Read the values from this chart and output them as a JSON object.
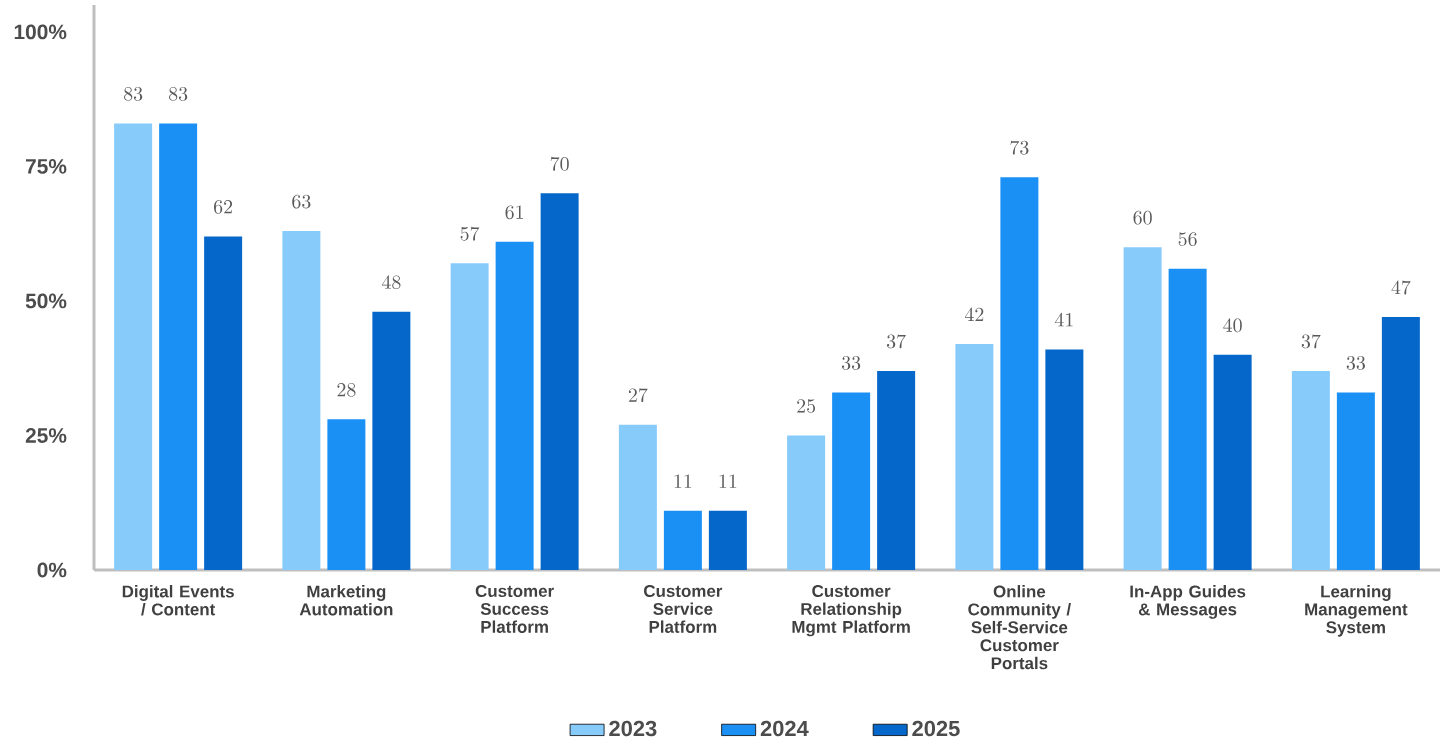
{
  "chart_data": {
    "type": "bar",
    "categories": [
      "Digital Events / Content",
      "Marketing Automation",
      "Customer Success Platform",
      "Customer Service Platform",
      "Customer Relationship Mgmt Platform",
      "Online Community / Self-Service Customer Portals",
      "In-App Guides & Messages",
      "Learning Management System"
    ],
    "series": [
      {
        "name": "2023",
        "color": "#87cbfb",
        "values": [
          83,
          63,
          57,
          27,
          25,
          42,
          60,
          37
        ]
      },
      {
        "name": "2024",
        "color": "#1a90f5",
        "values": [
          83,
          28,
          61,
          11,
          33,
          73,
          56,
          33
        ]
      },
      {
        "name": "2025",
        "color": "#0567c9",
        "values": [
          62,
          48,
          70,
          11,
          37,
          41,
          40,
          47
        ]
      }
    ],
    "ylim": [
      0,
      105
    ],
    "yticks": [
      {
        "value": 0,
        "label": "0%"
      },
      {
        "value": 25,
        "label": "25%"
      },
      {
        "value": 50,
        "label": "50%"
      },
      {
        "value": 75,
        "label": "75%"
      },
      {
        "value": 100,
        "label": "100%"
      }
    ],
    "data_labels": true,
    "grid": false,
    "legend": "bottom"
  }
}
